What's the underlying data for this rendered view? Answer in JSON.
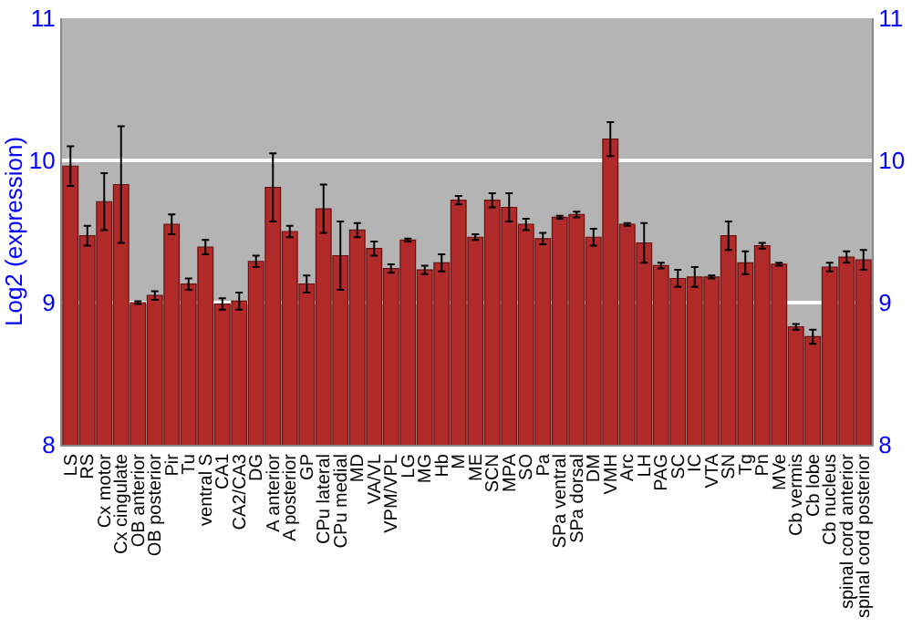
{
  "chart_data": {
    "type": "bar",
    "ylabel": "Log2 (expression)",
    "categories": [
      "LS",
      "RS",
      "Cx motor",
      "Cx cingulate",
      "OB anterior",
      "OB posterior",
      "Pir",
      "Tu",
      "ventral S",
      "CA1",
      "CA2/CA3",
      "DG",
      "A anterior",
      "A posterior",
      "GP",
      "CPu lateral",
      "CPu medial",
      "MD",
      "VA/VL",
      "VPM/VPL",
      "LG",
      "MG",
      "Hb",
      "M",
      "ME",
      "SCN",
      "MPA",
      "SO",
      "Pa",
      "SPa ventral",
      "SPa dorsal",
      "DM",
      "VMH",
      "Arc",
      "LH",
      "PAG",
      "SC",
      "IC",
      "VTA",
      "SN",
      "Tg",
      "Pn",
      "MVe",
      "Cb vermis",
      "Cb lobe",
      "Cb nucleus",
      "spinal cord anterior",
      "spinal cord posterior"
    ],
    "values": [
      9.96,
      9.47,
      9.71,
      9.83,
      9.0,
      9.05,
      9.55,
      9.13,
      9.39,
      8.99,
      9.01,
      9.29,
      9.81,
      9.5,
      9.13,
      9.66,
      9.33,
      9.51,
      9.38,
      9.24,
      9.44,
      9.23,
      9.28,
      9.72,
      9.46,
      9.72,
      9.67,
      9.55,
      9.45,
      9.6,
      9.62,
      9.46,
      10.15,
      9.55,
      9.42,
      9.26,
      9.17,
      9.18,
      9.18,
      9.47,
      9.28,
      9.4,
      9.27,
      8.83,
      8.76,
      9.25,
      9.32,
      9.3
    ],
    "errors": [
      0.14,
      0.07,
      0.2,
      0.41,
      0.01,
      0.03,
      0.07,
      0.04,
      0.05,
      0.04,
      0.06,
      0.04,
      0.24,
      0.04,
      0.06,
      0.17,
      0.24,
      0.05,
      0.05,
      0.03,
      0.01,
      0.03,
      0.06,
      0.03,
      0.02,
      0.05,
      0.1,
      0.04,
      0.04,
      0.01,
      0.02,
      0.06,
      0.12,
      0.01,
      0.14,
      0.02,
      0.06,
      0.07,
      0.01,
      0.1,
      0.08,
      0.02,
      0.01,
      0.02,
      0.05,
      0.03,
      0.04,
      0.07
    ],
    "color": "#b02a2a",
    "ylim": [
      8,
      11
    ],
    "yticks": [
      8,
      9,
      10,
      11
    ],
    "y2lim": [
      8,
      11
    ],
    "y2ticks": [
      8,
      9,
      10,
      11
    ],
    "grid": "y"
  }
}
